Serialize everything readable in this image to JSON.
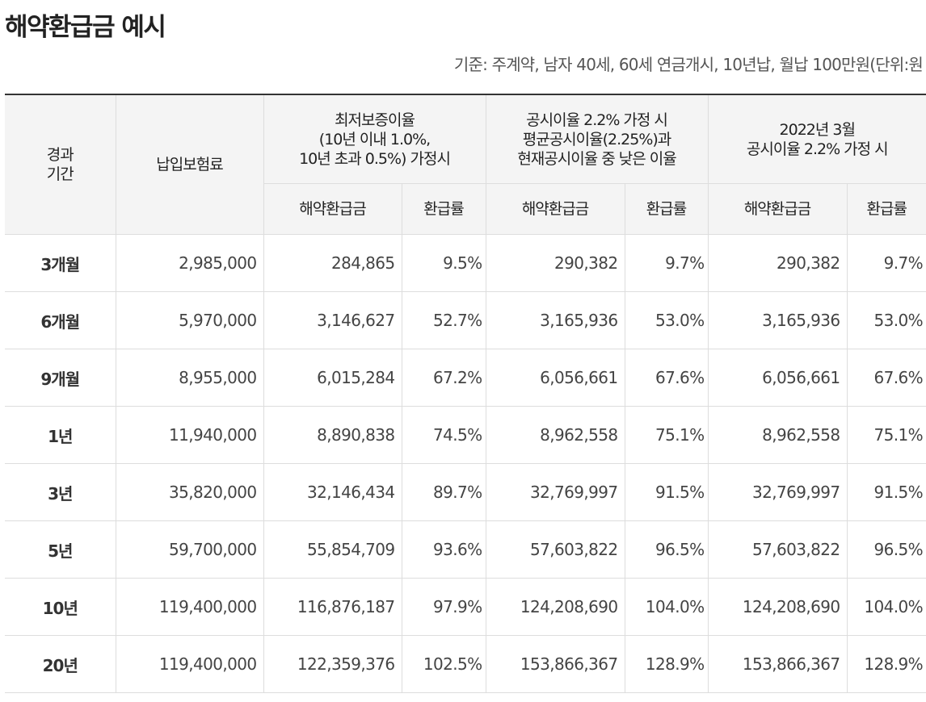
{
  "title": "해약환급금 예시",
  "basis": "기준: 주계약, 남자 40세, 60세 연금개시, 10년납, 월납 100만원(단위:원",
  "table": {
    "headers": {
      "period": [
        "경과",
        "기간"
      ],
      "premium": "납입보험료",
      "groups": [
        [
          "최저보증이율",
          "(10년 이내 1.0%,",
          "10년 초과 0.5%) 가정시"
        ],
        [
          "공시이율 2.2% 가정 시",
          "평균공시이율(2.25%)과",
          "현재공시이율 중 낮은 이율"
        ],
        [
          "2022년 3월",
          "공시이율 2.2% 가정 시"
        ]
      ],
      "sub": [
        "해약환급금",
        "환급률",
        "해약환급금",
        "환급률",
        "해약환급금",
        "환급률"
      ]
    },
    "rows": [
      {
        "period": "3개월",
        "premium": "2,985,000",
        "cells": [
          "284,865",
          "9.5%",
          "290,382",
          "9.7%",
          "290,382",
          "9.7%"
        ]
      },
      {
        "period": "6개월",
        "premium": "5,970,000",
        "cells": [
          "3,146,627",
          "52.7%",
          "3,165,936",
          "53.0%",
          "3,165,936",
          "53.0%"
        ]
      },
      {
        "period": "9개월",
        "premium": "8,955,000",
        "cells": [
          "6,015,284",
          "67.2%",
          "6,056,661",
          "67.6%",
          "6,056,661",
          "67.6%"
        ]
      },
      {
        "period": "1년",
        "premium": "11,940,000",
        "cells": [
          "8,890,838",
          "74.5%",
          "8,962,558",
          "75.1%",
          "8,962,558",
          "75.1%"
        ]
      },
      {
        "period": "3년",
        "premium": "35,820,000",
        "cells": [
          "32,146,434",
          "89.7%",
          "32,769,997",
          "91.5%",
          "32,769,997",
          "91.5%"
        ]
      },
      {
        "period": "5년",
        "premium": "59,700,000",
        "cells": [
          "55,854,709",
          "93.6%",
          "57,603,822",
          "96.5%",
          "57,603,822",
          "96.5%"
        ]
      },
      {
        "period": "10년",
        "premium": "119,400,000",
        "cells": [
          "116,876,187",
          "97.9%",
          "124,208,690",
          "104.0%",
          "124,208,690",
          "104.0%"
        ]
      },
      {
        "period": "20년",
        "premium": "119,400,000",
        "cells": [
          "122,359,376",
          "102.5%",
          "153,866,367",
          "128.9%",
          "153,866,367",
          "128.9%"
        ]
      }
    ]
  }
}
